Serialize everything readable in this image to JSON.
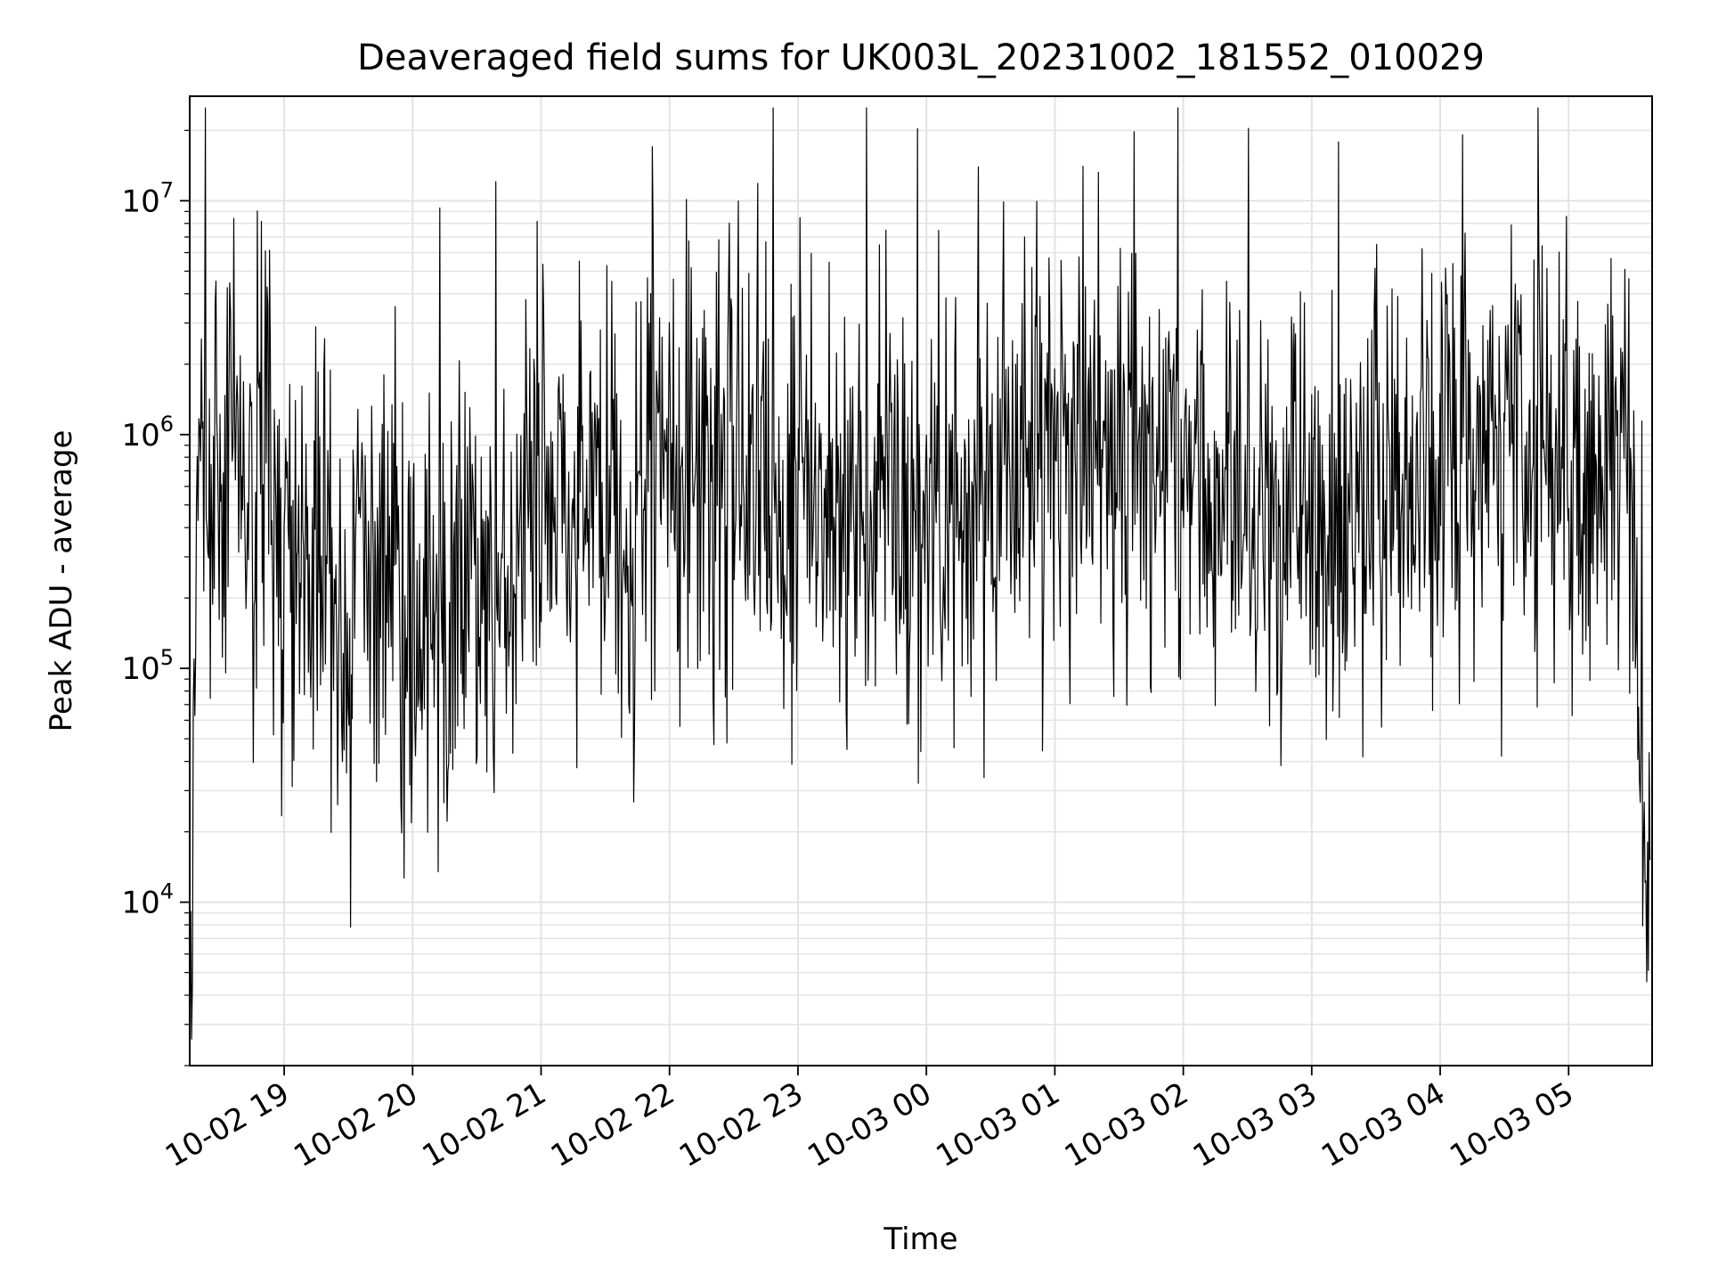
{
  "chart_data": {
    "type": "line",
    "title": "Deaveraged field sums for UK003L_20231002_181552_010029",
    "xlabel": "Time",
    "ylabel": "Peak ADU - average",
    "y_scale": "log",
    "ylim": [
      2000,
      28000000
    ],
    "xlim": [
      "2023-10-02 18:15:52",
      "2023-10-03 05:39:00"
    ],
    "grid": true,
    "line_color": "#000000",
    "grid_color": "#e3e3e3",
    "x_ticks": [
      {
        "value": "2023-10-02 19:00",
        "label": "10-02 19"
      },
      {
        "value": "2023-10-02 20:00",
        "label": "10-02 20"
      },
      {
        "value": "2023-10-02 21:00",
        "label": "10-02 21"
      },
      {
        "value": "2023-10-02 22:00",
        "label": "10-02 22"
      },
      {
        "value": "2023-10-02 23:00",
        "label": "10-02 23"
      },
      {
        "value": "2023-10-03 00:00",
        "label": "10-03 00"
      },
      {
        "value": "2023-10-03 01:00",
        "label": "10-03 01"
      },
      {
        "value": "2023-10-03 02:00",
        "label": "10-03 02"
      },
      {
        "value": "2023-10-03 03:00",
        "label": "10-03 03"
      },
      {
        "value": "2023-10-03 04:00",
        "label": "10-03 04"
      },
      {
        "value": "2023-10-03 05:00",
        "label": "10-03 05"
      }
    ],
    "y_ticks": [
      {
        "value": 10000,
        "base": "10",
        "exp": "4"
      },
      {
        "value": 100000,
        "base": "10",
        "exp": "5"
      },
      {
        "value": 1000000,
        "base": "10",
        "exp": "6"
      },
      {
        "value": 10000000,
        "base": "10",
        "exp": "7"
      }
    ],
    "series": [
      {
        "x": [
          "2023-10-02 18:16",
          "2023-10-02 18:20",
          "2023-10-02 18:25",
          "2023-10-02 18:30",
          "2023-10-02 18:36",
          "2023-10-02 18:42",
          "2023-10-02 18:48",
          "2023-10-02 18:54",
          "2023-10-02 19:00",
          "2023-10-02 19:10",
          "2023-10-02 19:20",
          "2023-10-02 19:30",
          "2023-10-02 19:40",
          "2023-10-02 19:50",
          "2023-10-02 20:00",
          "2023-10-02 20:15",
          "2023-10-02 20:30",
          "2023-10-02 20:45",
          "2023-10-02 21:00",
          "2023-10-02 21:15",
          "2023-10-02 21:30",
          "2023-10-02 21:45",
          "2023-10-02 22:00",
          "2023-10-02 22:20",
          "2023-10-02 22:40",
          "2023-10-02 23:00",
          "2023-10-02 23:20",
          "2023-10-02 23:40",
          "2023-10-03 00:00",
          "2023-10-03 00:20",
          "2023-10-03 00:40",
          "2023-10-03 01:00",
          "2023-10-03 01:20",
          "2023-10-03 01:40",
          "2023-10-03 02:00",
          "2023-10-03 02:15",
          "2023-10-03 02:30",
          "2023-10-03 02:45",
          "2023-10-03 03:00",
          "2023-10-03 03:15",
          "2023-10-03 03:30",
          "2023-10-03 03:45",
          "2023-10-03 04:00",
          "2023-10-03 04:20",
          "2023-10-03 04:40",
          "2023-10-03 05:00",
          "2023-10-03 05:15",
          "2023-10-03 05:25",
          "2023-10-03 05:30",
          "2023-10-03 05:35",
          "2023-10-03 05:38"
        ],
        "y": [
          4000,
          700000,
          900000,
          800000,
          700000,
          600000,
          500000,
          500000,
          400000,
          300000,
          300000,
          150000,
          200000,
          250000,
          150000,
          150000,
          200000,
          350000,
          500000,
          700000,
          500000,
          450000,
          600000,
          650000,
          700000,
          650000,
          600000,
          500000,
          400000,
          450000,
          550000,
          750000,
          750000,
          950000,
          950000,
          500000,
          350000,
          300000,
          320000,
          400000,
          500000,
          600000,
          750000,
          900000,
          850000,
          700000,
          650000,
          600000,
          600000,
          10000,
          9000
        ]
      }
    ]
  }
}
